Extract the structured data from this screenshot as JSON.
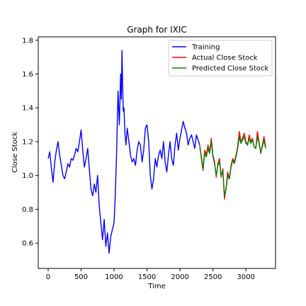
{
  "chart_data": {
    "type": "line",
    "title": "Graph for IXIC",
    "xlabel": "Time",
    "ylabel": "Close Stock",
    "xlim": [
      -150,
      3450
    ],
    "ylim": [
      0.45,
      1.82
    ],
    "xticks": [
      0,
      500,
      1000,
      1500,
      2000,
      2500,
      3000
    ],
    "yticks": [
      0.6,
      0.8,
      1.0,
      1.2,
      1.4,
      1.6,
      1.8
    ],
    "grid": false,
    "legend": "top-right",
    "series": [
      {
        "name": "Training",
        "color": "#0000ff",
        "x": [
          0,
          25,
          50,
          75,
          100,
          125,
          150,
          175,
          200,
          225,
          250,
          275,
          300,
          325,
          350,
          375,
          400,
          425,
          450,
          475,
          500,
          525,
          550,
          575,
          600,
          625,
          650,
          675,
          700,
          725,
          750,
          775,
          800,
          825,
          850,
          875,
          900,
          925,
          950,
          975,
          1000,
          1020,
          1040,
          1060,
          1080,
          1100,
          1110,
          1120,
          1130,
          1140,
          1150,
          1165,
          1180,
          1200,
          1225,
          1250,
          1275,
          1300,
          1325,
          1350,
          1375,
          1400,
          1425,
          1450,
          1475,
          1500,
          1525,
          1550,
          1575,
          1600,
          1625,
          1650,
          1675,
          1700,
          1725,
          1750,
          1775,
          1800,
          1825,
          1850,
          1875,
          1900,
          1925,
          1950,
          1975,
          2000,
          2025,
          2050,
          2075,
          2100,
          2125,
          2150,
          2175,
          2200,
          2225,
          2250,
          2275,
          2300
        ],
        "y": [
          1.1,
          1.14,
          1.04,
          0.96,
          1.08,
          1.15,
          1.2,
          1.12,
          1.06,
          1.0,
          0.98,
          1.02,
          1.07,
          1.05,
          1.1,
          1.09,
          1.12,
          1.16,
          1.14,
          1.2,
          1.27,
          1.15,
          1.05,
          1.1,
          1.16,
          1.04,
          0.92,
          0.88,
          0.95,
          0.9,
          1.0,
          0.82,
          0.72,
          0.62,
          0.74,
          0.58,
          0.66,
          0.54,
          0.64,
          0.68,
          0.72,
          0.9,
          1.15,
          1.5,
          1.3,
          1.6,
          1.45,
          1.74,
          1.55,
          1.38,
          1.4,
          1.25,
          1.18,
          1.28,
          1.2,
          1.12,
          1.08,
          1.1,
          1.06,
          1.15,
          1.2,
          1.18,
          1.08,
          1.15,
          1.28,
          1.3,
          1.2,
          1.0,
          0.92,
          0.98,
          1.1,
          1.05,
          1.12,
          1.15,
          1.1,
          1.2,
          1.08,
          1.02,
          1.12,
          1.2,
          1.1,
          1.06,
          1.18,
          1.25,
          1.15,
          1.22,
          1.27,
          1.32,
          1.28,
          1.25,
          1.18,
          1.22,
          1.24,
          1.2,
          1.16,
          1.24,
          1.21,
          1.18
        ]
      },
      {
        "name": "Actual Close Stock",
        "color": "#ff0000",
        "x": [
          2300,
          2325,
          2350,
          2375,
          2400,
          2425,
          2450,
          2475,
          2500,
          2525,
          2550,
          2575,
          2600,
          2625,
          2650,
          2675,
          2700,
          2725,
          2750,
          2775,
          2800,
          2825,
          2850,
          2875,
          2900,
          2925,
          2950,
          2975,
          3000,
          3025,
          3050,
          3075,
          3100,
          3125,
          3150,
          3175,
          3200,
          3225,
          3250,
          3275,
          3300
        ],
        "y": [
          1.18,
          1.1,
          1.03,
          1.15,
          1.12,
          1.18,
          1.14,
          1.22,
          1.12,
          1.08,
          0.99,
          1.07,
          1.1,
          0.99,
          1.04,
          0.86,
          0.93,
          1.02,
          0.98,
          1.06,
          1.1,
          1.08,
          1.12,
          1.17,
          1.26,
          1.2,
          1.22,
          1.25,
          1.2,
          1.18,
          1.24,
          1.2,
          1.22,
          1.17,
          1.16,
          1.26,
          1.2,
          1.13,
          1.18,
          1.23,
          1.17
        ]
      },
      {
        "name": "Predicted Close Stock",
        "color": "#008000",
        "x": [
          2300,
          2325,
          2350,
          2375,
          2400,
          2425,
          2450,
          2475,
          2500,
          2525,
          2550,
          2575,
          2600,
          2625,
          2650,
          2675,
          2700,
          2725,
          2750,
          2775,
          2800,
          2825,
          2850,
          2875,
          2900,
          2925,
          2950,
          2975,
          3000,
          3025,
          3050,
          3075,
          3100,
          3125,
          3150,
          3175,
          3200,
          3225,
          3250,
          3275,
          3300
        ],
        "y": [
          1.17,
          1.11,
          1.04,
          1.13,
          1.11,
          1.16,
          1.13,
          1.2,
          1.11,
          1.07,
          1.0,
          1.06,
          1.08,
          1.0,
          1.03,
          0.88,
          0.92,
          1.0,
          0.98,
          1.05,
          1.09,
          1.07,
          1.11,
          1.16,
          1.23,
          1.19,
          1.21,
          1.23,
          1.19,
          1.18,
          1.22,
          1.19,
          1.21,
          1.17,
          1.16,
          1.23,
          1.19,
          1.14,
          1.17,
          1.21,
          1.16
        ]
      }
    ]
  }
}
